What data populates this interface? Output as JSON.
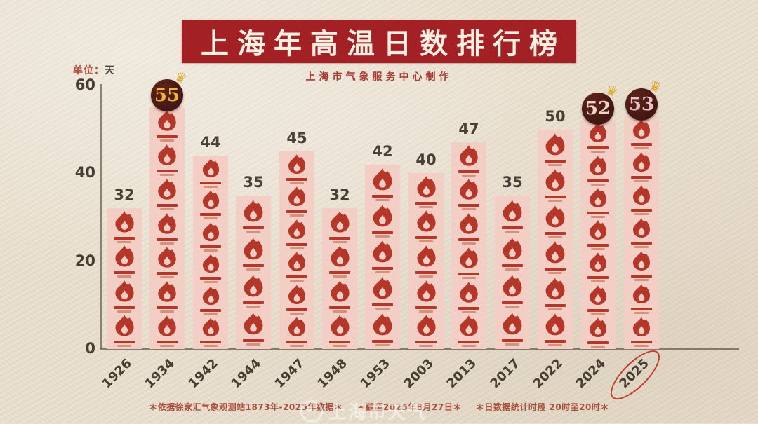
{
  "header": {
    "title": "上海年高温日数排行榜",
    "subtitle": "上海市气象服务中心制作",
    "banner_color": "#a32025",
    "title_text_color": "#f7efe2",
    "subtitle_color": "#a93a2f"
  },
  "unit_label": {
    "prefix": "单位：",
    "value": "天",
    "prefix_color": "#b04a38",
    "value_color": "#46413a"
  },
  "chart_data": {
    "type": "bar",
    "title": "上海年高温日数排行榜",
    "categories": [
      "1926",
      "1934",
      "1942",
      "1944",
      "1947",
      "1948",
      "1953",
      "2003",
      "2013",
      "2017",
      "2022",
      "2024",
      "2025"
    ],
    "values": [
      32,
      55,
      44,
      35,
      45,
      32,
      42,
      40,
      47,
      35,
      50,
      52,
      53
    ],
    "ylabel": "天",
    "ylim": [
      0,
      60
    ],
    "y_ticks": [
      60,
      40,
      20,
      0
    ],
    "grid": false,
    "legend": false,
    "bar_color": "#f3cec5",
    "flame_color": "#b5372a",
    "flame_line2_color": "#cf7a63",
    "value_label_color": "#4a4036",
    "badge_circle_color": "#431712",
    "crown_color": "#dda62c",
    "badges": [
      {
        "year": "1934",
        "value": 55,
        "number_color": "#eeb33c"
      },
      {
        "year": "2024",
        "value": 52,
        "number_color": "#f0d5c8"
      },
      {
        "year": "2025",
        "value": 53,
        "number_color": "#e9c0c2"
      }
    ],
    "circled_category": "2025",
    "circle_color": "#c23a2c"
  },
  "footnotes": {
    "color": "#a94f3c",
    "items": [
      "＊依据徐家汇气象观测站1873年-2025年数据＊",
      "＊截至2025年8月27日＊",
      "＊日数据统计时段 20时至20时＊"
    ]
  },
  "watermark": {
    "text": "上海市天气"
  }
}
